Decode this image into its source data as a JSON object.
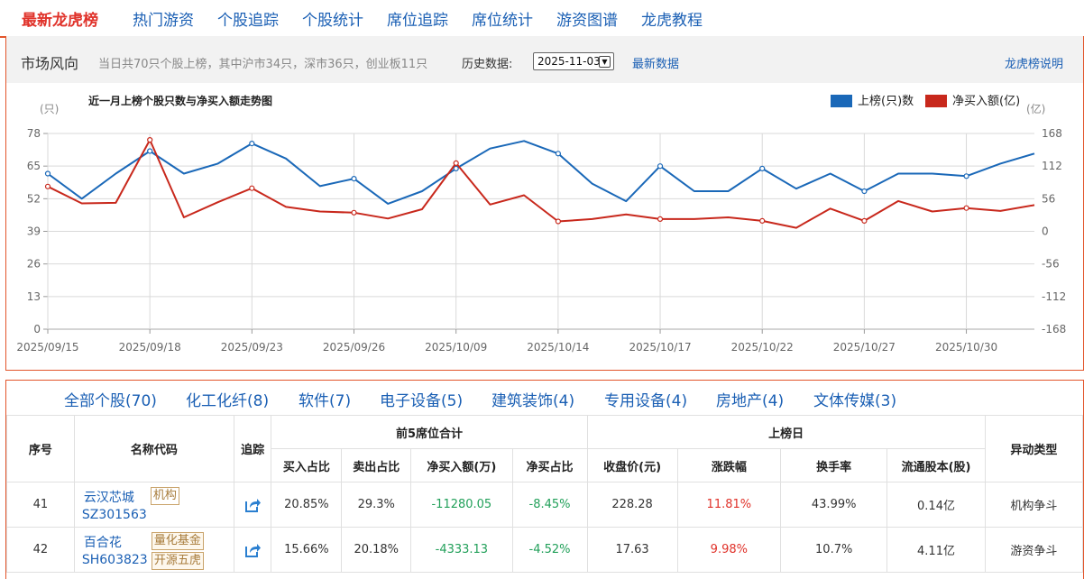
{
  "nav": {
    "brand": "最新龙虎榜",
    "items": [
      "热门游资",
      "个股追踪",
      "个股统计",
      "席位追踪",
      "席位统计",
      "游资图谱",
      "龙虎教程"
    ]
  },
  "market": {
    "title": "市场风向",
    "summary": "当日共70只个股上榜，其中沪市34只，深市36只，创业板11只",
    "history_label": "历史数据:",
    "history_value": "2025-11-03",
    "latest_link": "最新数据",
    "explain_link": "龙虎榜说明"
  },
  "chart_data": {
    "type": "line",
    "title": "近一月上榜个股只数与净买入额走势图",
    "left_unit": "(只)",
    "right_unit": "(亿)",
    "y_left_ticks": [
      0,
      13,
      26,
      39,
      52,
      65,
      78
    ],
    "y_right_ticks": [
      -168,
      -112,
      -56,
      0,
      56,
      112,
      168
    ],
    "ylim_left": [
      0,
      78
    ],
    "ylim_right": [
      -168,
      168
    ],
    "x_labels": [
      "2025/09/15",
      "2025/09/18",
      "2025/09/23",
      "2025/09/26",
      "2025/10/09",
      "2025/10/14",
      "2025/10/17",
      "2025/10/22",
      "2025/10/27",
      "2025/10/30"
    ],
    "series": [
      {
        "name": "上榜(只)数",
        "axis": "left",
        "color": "#1a68b8",
        "values": [
          62,
          52,
          62,
          71,
          62,
          66,
          74,
          68,
          57,
          60,
          50,
          55,
          64,
          72,
          75,
          70,
          58,
          51,
          65,
          55,
          55,
          64,
          56,
          62,
          55,
          62,
          62,
          61,
          66,
          70
        ]
      },
      {
        "name": "净买入额(亿)",
        "axis": "right",
        "color": "#c8281c",
        "values": [
          77,
          48,
          49,
          157,
          24,
          50,
          74,
          42,
          34,
          32,
          22,
          38,
          117,
          46,
          62,
          17,
          21,
          29,
          21,
          21,
          24,
          18,
          6,
          39,
          18,
          52,
          34,
          40,
          35,
          45
        ]
      }
    ],
    "marker_every": 3
  },
  "tabs": [
    "全部个股(70)",
    "化工化纤(8)",
    "软件(7)",
    "电子设备(5)",
    "建筑装饰(4)",
    "专用设备(4)",
    "房地产(4)",
    "文体传媒(3)"
  ],
  "table": {
    "headers": {
      "seq": "序号",
      "name": "名称代码",
      "track": "追踪",
      "group1": "前5席位合计",
      "group2": "上榜日",
      "buy_ratio": "买入占比",
      "sell_ratio": "卖出占比",
      "net_buy": "净买入额(万)",
      "net_ratio": "净买占比",
      "close": "收盘价(元)",
      "change": "涨跌幅",
      "turnover": "换手率",
      "float_shares": "流通股本(股)",
      "type": "异动类型"
    },
    "rows": [
      {
        "seq": "41",
        "name": "云汉芯城",
        "code": "SZ301563",
        "tags": [
          "机构"
        ],
        "buy_ratio": "20.85%",
        "sell_ratio": "29.3%",
        "net_buy": "-11280.05",
        "net_ratio": "-8.45%",
        "close": "228.28",
        "change": "11.81%",
        "turnover": "43.99%",
        "float_shares": "0.14亿",
        "type": "机构争斗"
      },
      {
        "seq": "42",
        "name": "百合花",
        "code": "SH603823",
        "tags": [
          "量化基金",
          "开源五虎"
        ],
        "buy_ratio": "15.66%",
        "sell_ratio": "20.18%",
        "net_buy": "-4333.13",
        "net_ratio": "-4.52%",
        "close": "17.63",
        "change": "9.98%",
        "turnover": "10.7%",
        "float_shares": "4.11亿",
        "type": "游资争斗"
      }
    ]
  }
}
